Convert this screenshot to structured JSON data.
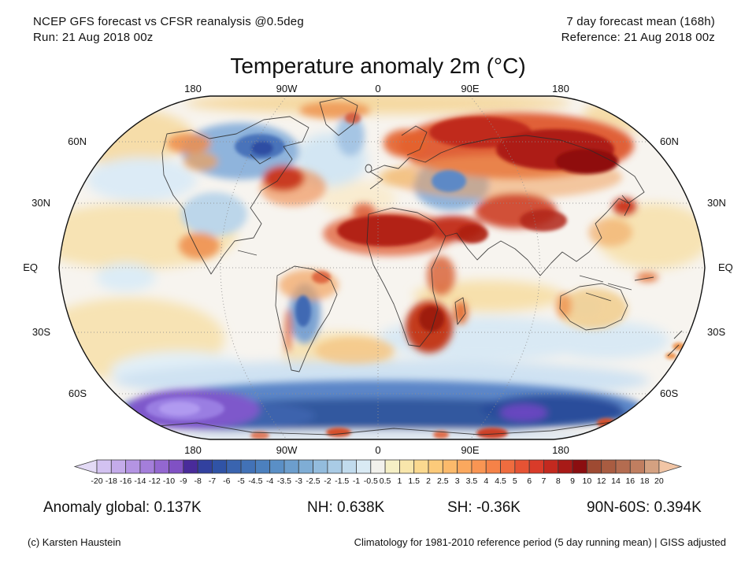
{
  "header": {
    "left_line1": "NCEP GFS forecast vs CFSR reanalysis @0.5deg",
    "left_line2": "Run: 21 Aug 2018 00z",
    "right_line1": "7 day forecast mean (168h)",
    "right_line2": "Reference: 21 Aug 2018 00z"
  },
  "title": "Temperature anomaly 2m (°C)",
  "map": {
    "top_labels": [
      "180",
      "90W",
      "0",
      "90E",
      "180"
    ],
    "bottom_labels": [
      "180",
      "90W",
      "0",
      "90E",
      "180"
    ],
    "left_labels": [
      "60N",
      "30N",
      "EQ",
      "30S",
      "60S"
    ],
    "right_labels": [
      "60N",
      "30N",
      "EQ",
      "30S",
      "60S"
    ]
  },
  "colorbar": {
    "tick_labels": [
      "-20",
      "-18",
      "-16",
      "-14",
      "-12",
      "-10",
      "-9",
      "-8",
      "-7",
      "-6",
      "-5",
      "-4.5",
      "-4",
      "-3.5",
      "-3",
      "-2.5",
      "-2",
      "-1.5",
      "-1",
      "-0.5",
      "0.5",
      "1",
      "1.5",
      "2",
      "2.5",
      "3",
      "3.5",
      "4",
      "4.5",
      "5",
      "6",
      "7",
      "8",
      "9",
      "10",
      "12",
      "14",
      "16",
      "18",
      "20"
    ],
    "segment_colors": [
      "#d3c2f1",
      "#c4abea",
      "#b494e3",
      "#a47eda",
      "#9367d0",
      "#8051c4",
      "#492b9a",
      "#32419f",
      "#3053a6",
      "#3a64af",
      "#4272b7",
      "#4c80be",
      "#5a8fc6",
      "#6c9ecd",
      "#7fadd5",
      "#93bcdd",
      "#a9cbe5",
      "#c1dbed",
      "#d9eaf4",
      "#f2f1ec",
      "#f5efc5",
      "#f8e6ab",
      "#fbd98f",
      "#fcca7a",
      "#fcba6b",
      "#fba85e",
      "#f99553",
      "#f58248",
      "#ef6c3f",
      "#e65334",
      "#d93b29",
      "#c3291f",
      "#a81a17",
      "#8b0e10",
      "#9e4a32",
      "#a95c41",
      "#b46c50",
      "#c07e60",
      "#d4a181"
    ],
    "left_arrow_color": "#e3daf5",
    "right_arrow_color": "#f2c5a5"
  },
  "stats": {
    "items": [
      "Anomaly global: 0.137K",
      "NH: 0.638K",
      "SH: -0.36K",
      "90N-60S: 0.394K"
    ]
  },
  "footer": {
    "left": "(c) Karsten Haustein",
    "right": "Climatology for 1981-2010 reference period (5 day running mean) | GISS adjusted"
  }
}
